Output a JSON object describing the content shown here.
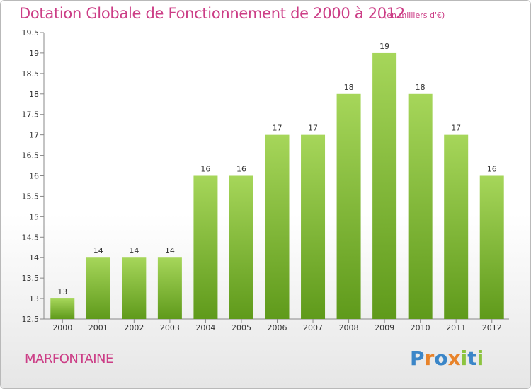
{
  "title": "Dotation Globale de Fonctionnement de 2000 à 2012",
  "subtitle": "(en milliers d'€)",
  "commune": "MARFONTAINE",
  "brand": {
    "letters": [
      {
        "ch": "P",
        "color": "#3b86c8"
      },
      {
        "ch": "r",
        "color": "#e8832a"
      },
      {
        "ch": "o",
        "color": "#3b86c8"
      },
      {
        "ch": "x",
        "color": "#e8832a"
      },
      {
        "ch": "i",
        "color": "#8cc43f"
      },
      {
        "ch": "t",
        "color": "#3b86c8"
      },
      {
        "ch": "i",
        "color": "#8cc43f"
      }
    ]
  },
  "chart_data": {
    "type": "bar",
    "categories": [
      "2000",
      "2001",
      "2002",
      "2003",
      "2004",
      "2005",
      "2006",
      "2007",
      "2008",
      "2009",
      "2010",
      "2011",
      "2012"
    ],
    "values": [
      13,
      14,
      14,
      14,
      16,
      16,
      17,
      17,
      18,
      19,
      18,
      17,
      16
    ],
    "data_labels": [
      "13",
      "14",
      "14",
      "14",
      "16",
      "16",
      "17",
      "17",
      "18",
      "19",
      "18",
      "17",
      "16"
    ],
    "series_plot_values": [
      13,
      14,
      14,
      14,
      16,
      16,
      17,
      17,
      18,
      19,
      18,
      17,
      16
    ],
    "yticks": [
      "12.5",
      "13",
      "13.5",
      "14",
      "14.5",
      "15",
      "15.5",
      "16",
      "16.5",
      "17",
      "17.5",
      "18",
      "18.5",
      "19",
      "19.5"
    ],
    "ylim": [
      12.5,
      19.5
    ],
    "bar_color_top": "#a6d65a",
    "bar_color_bottom": "#5f9a1b",
    "label_color": "#333333",
    "grid": false
  }
}
